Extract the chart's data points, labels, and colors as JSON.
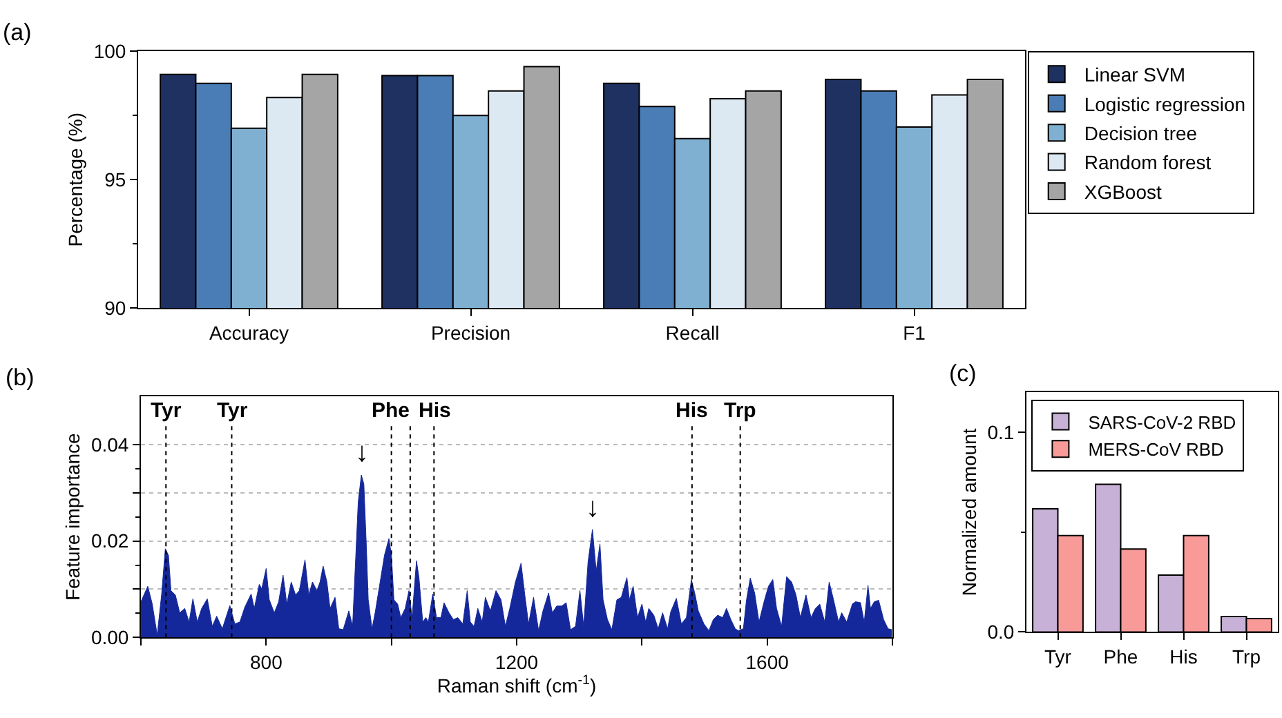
{
  "chart_data": [
    {
      "type": "bar",
      "title": "(a)",
      "ylabel": "Percentage (%)",
      "categories": [
        "Accuracy",
        "Precision",
        "Recall",
        "F1"
      ],
      "series": [
        {
          "name": "Linear SVM",
          "color": "#1f3160",
          "values": [
            99.1,
            99.05,
            98.75,
            98.9
          ]
        },
        {
          "name": "Logistic regression",
          "color": "#4a7db5",
          "values": [
            98.75,
            99.05,
            97.85,
            98.45
          ]
        },
        {
          "name": "Decision tree",
          "color": "#80b0d1",
          "values": [
            97.0,
            97.5,
            96.6,
            97.05
          ]
        },
        {
          "name": "Random forest",
          "color": "#dce9f3",
          "values": [
            98.2,
            98.45,
            98.15,
            98.3
          ]
        },
        {
          "name": "XGBoost",
          "color": "#a5a5a5",
          "values": [
            99.1,
            99.4,
            98.45,
            98.9
          ]
        }
      ],
      "ylim": [
        90,
        100
      ],
      "yticks": [
        90,
        95,
        100
      ],
      "legend": "right",
      "grid": false
    },
    {
      "type": "area",
      "title": "(b)",
      "xlabel": "Raman shift (cm$^{-1}$)",
      "ylabel": "Feature importance",
      "x": [
        600,
        611,
        618,
        626,
        633,
        639,
        644,
        648,
        655,
        662,
        670,
        677,
        683,
        690,
        697,
        706,
        714,
        721,
        730,
        742,
        750,
        758,
        766,
        776,
        781,
        789,
        793,
        800,
        805,
        813,
        820,
        827,
        833,
        840,
        847,
        853,
        862,
        868,
        874,
        881,
        886,
        891,
        897,
        902,
        910,
        916,
        923,
        932,
        938,
        943,
        947,
        952,
        956,
        960,
        963,
        969,
        974,
        982,
        989,
        996,
        1000,
        1004,
        1010,
        1015,
        1022,
        1028,
        1033,
        1040,
        1044,
        1050,
        1055,
        1059,
        1066,
        1072,
        1079,
        1084,
        1092,
        1099,
        1106,
        1114,
        1121,
        1126,
        1132,
        1138,
        1145,
        1150,
        1158,
        1167,
        1175,
        1182,
        1189,
        1198,
        1207,
        1213,
        1219,
        1227,
        1235,
        1242,
        1251,
        1257,
        1264,
        1272,
        1279,
        1286,
        1294,
        1301,
        1307,
        1314,
        1321,
        1327,
        1333,
        1338,
        1345,
        1352,
        1360,
        1367,
        1376,
        1380,
        1386,
        1393,
        1400,
        1406,
        1411,
        1419,
        1426,
        1433,
        1441,
        1446,
        1455,
        1463,
        1471,
        1479,
        1485,
        1490,
        1499,
        1507,
        1514,
        1521,
        1529,
        1535,
        1542,
        1549,
        1554,
        1562,
        1567,
        1573,
        1580,
        1587,
        1595,
        1602,
        1609,
        1615,
        1623,
        1631,
        1639,
        1646,
        1653,
        1662,
        1670,
        1677,
        1684,
        1692,
        1699,
        1706,
        1714,
        1719,
        1727,
        1736,
        1741,
        1749,
        1755,
        1761,
        1765,
        1771,
        1778,
        1786,
        1793,
        1799
      ],
      "series": [
        {
          "color": "#15289b",
          "values": [
            0.0074,
            0.0106,
            0.007,
            0.0005,
            0.0088,
            0.0184,
            0.017,
            0.0097,
            0.0088,
            0.0051,
            0.006,
            0.0032,
            0.008,
            0.0032,
            0.006,
            0.008,
            0.0023,
            0.0044,
            0.0018,
            0.0066,
            0.0028,
            0.0032,
            0.0063,
            0.009,
            0.006,
            0.011,
            0.0101,
            0.0143,
            0.0078,
            0.0051,
            0.0074,
            0.0129,
            0.0069,
            0.0115,
            0.0088,
            0.0097,
            0.0161,
            0.0088,
            0.0115,
            0.0097,
            0.0115,
            0.0148,
            0.0115,
            0.006,
            0.0083,
            0.0018,
            0.0016,
            0.0055,
            0.0023,
            0.0166,
            0.0281,
            0.0337,
            0.0318,
            0.0189,
            0.0078,
            0.0018,
            0.0051,
            0.0115,
            0.0171,
            0.0205,
            0.0171,
            0.0078,
            0.0069,
            0.0041,
            0.006,
            0.0097,
            0.0041,
            0.0159,
            0.0124,
            0.0032,
            0.0041,
            0.0032,
            0.009,
            0.0041,
            0.0041,
            0.0072,
            0.0051,
            0.0037,
            0.0041,
            0.0028,
            0.0097,
            0.0032,
            0.0023,
            0.006,
            0.0032,
            0.0083,
            0.0055,
            0.0097,
            0.0078,
            0.0023,
            0.006,
            0.0115,
            0.0154,
            0.0088,
            0.0028,
            0.0083,
            0.0014,
            0.0055,
            0.0092,
            0.0051,
            0.0065,
            0.0065,
            0.0072,
            0.0016,
            0.0023,
            0.0097,
            0.0023,
            0.0157,
            0.0224,
            0.0138,
            0.0194,
            0.0078,
            0.0037,
            0.0016,
            0.0078,
            0.0083,
            0.0124,
            0.0078,
            0.0106,
            0.0041,
            0.0069,
            0.0032,
            0.006,
            0.0046,
            0.0018,
            0.0051,
            0.0018,
            0.0053,
            0.0081,
            0.0028,
            0.0041,
            0.012,
            0.0088,
            0.0055,
            0.0028,
            0.0014,
            0.0037,
            0.0046,
            0.0041,
            0.006,
            0.0037,
            0.0018,
            0.0014,
            0.0018,
            0.0078,
            0.0123,
            0.0092,
            0.0032,
            0.0074,
            0.0106,
            0.012,
            0.006,
            0.0023,
            0.0126,
            0.0115,
            0.0088,
            0.0041,
            0.0088,
            0.0041,
            0.006,
            0.0069,
            0.0032,
            0.0115,
            0.0078,
            0.0032,
            0.0051,
            0.0032,
            0.0069,
            0.0074,
            0.0072,
            0.0032,
            0.0108,
            0.006,
            0.0074,
            0.0077,
            0.0037,
            0.0018,
            0.0016
          ]
        }
      ],
      "xlim": [
        600,
        1800
      ],
      "xticks": [
        {
          "value": 600,
          "label": null
        },
        800,
        {
          "value": 1000,
          "label": null
        },
        1200,
        {
          "value": 1400,
          "label": null
        },
        1600,
        {
          "value": 1800,
          "label": null
        }
      ],
      "ylim": [
        0,
        0.05
      ],
      "yticks": [
        {
          "value": 0,
          "label": "0.00"
        },
        {
          "value": 0.01,
          "label": null
        },
        0.02,
        {
          "value": 0.03,
          "label": null
        },
        0.04
      ],
      "grid": "y",
      "ref_lines": [
        {
          "axis": "x",
          "value": 640,
          "label": "Tyr",
          "line_style": "dotted"
        },
        {
          "axis": "x",
          "value": 745,
          "label": "Tyr",
          "line_style": "dotted"
        },
        {
          "axis": "x",
          "value": 1000,
          "label": "Phe",
          "line_style": "dotted"
        },
        {
          "axis": "x",
          "value": 1030,
          "line_style": "dotted"
        },
        {
          "axis": "x",
          "value": 1068,
          "label": "His",
          "line_style": "dotted"
        },
        {
          "axis": "x",
          "value": 1480,
          "label": "His",
          "line_style": "dotted"
        },
        {
          "axis": "x",
          "value": 1557,
          "label": "Trp",
          "line_style": "dotted"
        }
      ],
      "annotations": [
        {
          "text": "↓",
          "x": 952,
          "y": 0.0345
        },
        {
          "text": "↓",
          "x": 1321,
          "y": 0.0232
        }
      ]
    },
    {
      "type": "bar",
      "title": "(c)",
      "ylabel": "Normalized amount",
      "categories": [
        "Tyr",
        "Phe",
        "His",
        "Trp"
      ],
      "series": [
        {
          "name": "SARS-CoV-2 RBD",
          "color": "#c8b1d6",
          "values": [
            0.0617,
            0.074,
            0.0285,
            0.0078
          ]
        },
        {
          "name": "MERS-CoV RBD",
          "color": "#f79a98",
          "values": [
            0.0483,
            0.0416,
            0.0483,
            0.0067
          ]
        }
      ],
      "ylim": [
        0,
        0.12
      ],
      "yticks": [
        {
          "value": 0,
          "label": "0.0"
        },
        0.1
      ],
      "legend": "top",
      "grid": false
    }
  ]
}
